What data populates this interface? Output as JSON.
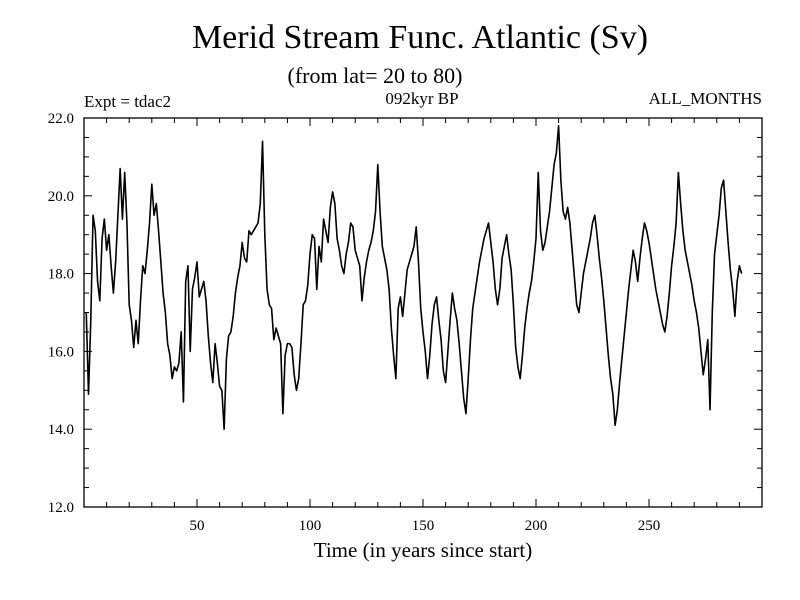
{
  "chart_data": {
    "type": "line",
    "title": "Merid Stream Func. Atlantic (Sv)",
    "subtitle": "(from lat= 20 to 80)",
    "experiment_label": "Expt = tdac2",
    "period_label": "092kyr BP",
    "months_label": "ALL_MONTHS",
    "xlabel": "Time (in years since start)",
    "ylabel": "",
    "xlim": [
      0,
      300
    ],
    "ylim": [
      12,
      22
    ],
    "x_ticks": [
      50,
      100,
      150,
      200,
      250
    ],
    "x_tick_labels": [
      "50",
      "100",
      "150",
      "200",
      "250"
    ],
    "y_ticks": [
      12,
      14,
      16,
      18,
      20,
      22
    ],
    "y_tick_labels": [
      "12.0",
      "14.0",
      "16.0",
      "18.0",
      "20.0",
      "22.0"
    ],
    "series": [
      {
        "name": "Merid Stream Func. Atlantic",
        "color": "#000000",
        "x_start": 1,
        "x_step": 1,
        "values": [
          17.0,
          14.9,
          16.8,
          19.5,
          19.1,
          17.8,
          17.3,
          18.9,
          19.4,
          18.6,
          19.0,
          18.2,
          17.5,
          18.3,
          19.5,
          20.7,
          19.4,
          20.6,
          19.3,
          17.2,
          16.8,
          16.1,
          16.8,
          16.2,
          17.3,
          18.2,
          18.0,
          18.6,
          19.3,
          20.3,
          19.5,
          19.8,
          19.1,
          18.3,
          17.5,
          17.0,
          16.2,
          15.9,
          15.3,
          15.6,
          15.5,
          15.7,
          16.5,
          14.7,
          17.8,
          18.2,
          16.0,
          17.6,
          17.9,
          18.3,
          17.4,
          17.6,
          17.8,
          17.3,
          16.4,
          15.7,
          15.2,
          16.2,
          15.7,
          15.1,
          15.0,
          14.0,
          15.8,
          16.4,
          16.5,
          16.9,
          17.5,
          17.9,
          18.2,
          18.8,
          18.4,
          18.3,
          19.1,
          19.0,
          19.1,
          19.2,
          19.3,
          19.8,
          21.4,
          19.0,
          17.6,
          17.2,
          17.1,
          16.3,
          16.6,
          16.4,
          16.2,
          14.4,
          15.9,
          16.2,
          16.2,
          16.1,
          15.4,
          15.0,
          15.3,
          16.2,
          17.2,
          17.3,
          17.7,
          18.5,
          19.0,
          18.9,
          17.6,
          18.7,
          18.3,
          19.4,
          19.1,
          18.8,
          19.7,
          20.1,
          19.8,
          18.9,
          18.6,
          18.2,
          18.0,
          18.5,
          18.8,
          19.3,
          19.2,
          18.6,
          18.4,
          18.2,
          17.3,
          17.9,
          18.3,
          18.6,
          18.8,
          19.1,
          19.6,
          20.8,
          19.6,
          18.7,
          18.4,
          18.1,
          17.6,
          16.6,
          15.9,
          15.3,
          17.1,
          17.4,
          16.9,
          17.5,
          18.1,
          18.3,
          18.5,
          18.7,
          19.2,
          18.3,
          17.1,
          16.5,
          16.0,
          15.3,
          15.9,
          16.7,
          17.2,
          17.4,
          16.8,
          16.3,
          15.5,
          15.2,
          16.0,
          16.8,
          17.5,
          17.1,
          16.8,
          16.2,
          15.5,
          14.8,
          14.4,
          15.3,
          16.3,
          17.1,
          17.5,
          17.9,
          18.3,
          18.6,
          18.9,
          19.1,
          19.3,
          18.8,
          18.3,
          17.6,
          17.2,
          17.6,
          18.4,
          18.7,
          19.0,
          18.5,
          18.1,
          17.2,
          16.1,
          15.6,
          15.3,
          15.9,
          16.6,
          17.1,
          17.5,
          17.8,
          18.3,
          18.9,
          20.6,
          19.1,
          18.6,
          18.8,
          19.2,
          19.6,
          20.2,
          20.8,
          21.1,
          21.8,
          20.4,
          19.6,
          19.4,
          19.7,
          19.3,
          18.6,
          17.9,
          17.2,
          17.0,
          17.5,
          18.0,
          18.3,
          18.6,
          18.9,
          19.3,
          19.5,
          19.0,
          18.4,
          17.9,
          17.3,
          16.6,
          15.9,
          15.3,
          14.9,
          14.1,
          14.5,
          15.2,
          15.8,
          16.4,
          17.0,
          17.6,
          18.1,
          18.6,
          18.3,
          17.8,
          18.4,
          18.9,
          19.3,
          19.1,
          18.8,
          18.4,
          18.0,
          17.6,
          17.3,
          17.0,
          16.7,
          16.5,
          16.9,
          17.5,
          18.2,
          18.7,
          19.3,
          20.6,
          19.8,
          19.1,
          18.6,
          18.3,
          18.0,
          17.7,
          17.3,
          17.0,
          16.6,
          16.0,
          15.4,
          15.8,
          16.3,
          14.5,
          17.0,
          18.5,
          19.0,
          19.5,
          20.2,
          20.4,
          19.6,
          18.8,
          18.1,
          17.6,
          16.9,
          17.8,
          18.2,
          18.0
        ]
      }
    ]
  }
}
